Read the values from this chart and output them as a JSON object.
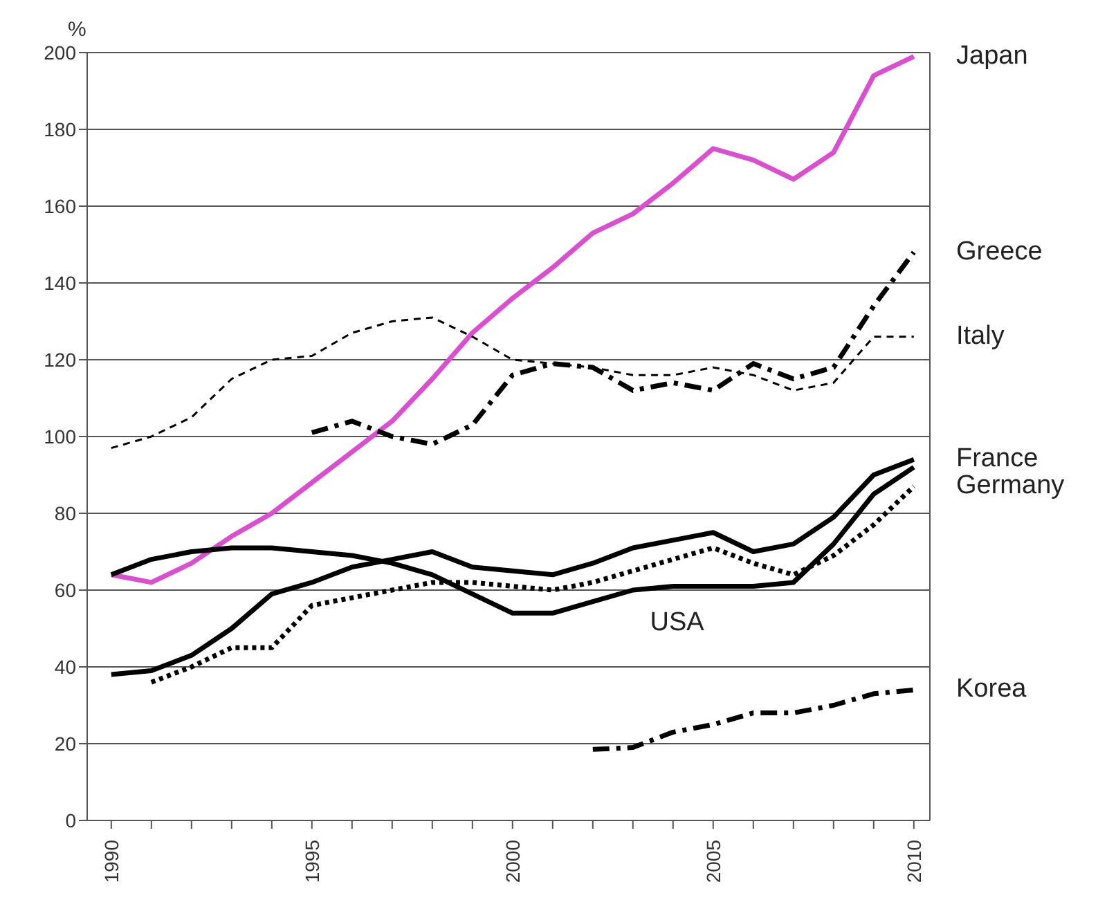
{
  "chart_data": {
    "type": "line",
    "ylabel": "%",
    "x": [
      1990,
      1991,
      1992,
      1993,
      1994,
      1995,
      1996,
      1997,
      1998,
      1999,
      2000,
      2001,
      2002,
      2003,
      2004,
      2005,
      2006,
      2007,
      2008,
      2009,
      2010
    ],
    "series": [
      {
        "name": "Japan",
        "color": "#d94fd0",
        "line_style": "solid",
        "values": [
          64,
          62,
          67,
          74,
          80,
          88,
          96,
          104,
          115,
          127,
          136,
          144,
          153,
          158,
          166,
          175,
          172,
          167,
          174,
          194,
          199
        ]
      },
      {
        "name": "Greece",
        "color": "#000000",
        "line_style": "dashdot",
        "values": [
          null,
          null,
          null,
          null,
          null,
          101,
          104,
          100,
          98,
          103,
          116,
          119,
          118,
          112,
          114,
          112,
          119,
          115,
          118,
          134,
          148
        ]
      },
      {
        "name": "Italy",
        "color": "#000000",
        "line_style": "dashed",
        "values": [
          97,
          100,
          105,
          115,
          120,
          121,
          127,
          130,
          131,
          126,
          120,
          119,
          118,
          116,
          116,
          118,
          116,
          112,
          114,
          126,
          126
        ]
      },
      {
        "name": "France",
        "color": "#000000",
        "line_style": "solid",
        "values": [
          38,
          39,
          43,
          50,
          59,
          62,
          66,
          68,
          70,
          66,
          65,
          64,
          67,
          71,
          73,
          75,
          70,
          72,
          79,
          90,
          94
        ]
      },
      {
        "name": "Germany",
        "color": "#000000",
        "line_style": "dotted",
        "values": [
          null,
          36,
          40,
          45,
          45,
          56,
          58,
          60,
          62,
          62,
          61,
          60,
          62,
          65,
          68,
          71,
          67,
          64,
          69,
          77,
          87
        ]
      },
      {
        "color": "#000000",
        "line_style": "solid",
        "values": [
          64,
          68,
          70,
          71,
          71,
          70,
          69,
          67,
          64,
          59,
          54,
          54,
          57,
          60,
          61,
          61,
          61,
          62,
          72,
          85,
          92
        ]
      },
      {
        "name": "Korea",
        "color": "#000000",
        "line_style": "dashdot",
        "values": [
          null,
          null,
          null,
          null,
          null,
          null,
          null,
          null,
          null,
          null,
          null,
          null,
          18.5,
          19,
          23,
          25,
          28,
          28,
          30,
          33,
          34
        ]
      }
    ],
    "annotations": [
      "USA"
    ],
    "xlim": [
      1989.4,
      2010.4
    ],
    "xticks": [
      1990,
      {
        "value": 1991,
        "label": null
      },
      {
        "value": 1992,
        "label": null
      },
      {
        "value": 1993,
        "label": null
      },
      {
        "value": 1994,
        "label": null
      },
      1995,
      {
        "value": 1996,
        "label": null
      },
      {
        "value": 1997,
        "label": null
      },
      {
        "value": 1998,
        "label": null
      },
      {
        "value": 1999,
        "label": null
      },
      2000,
      {
        "value": 2001,
        "label": null
      },
      {
        "value": 2002,
        "label": null
      },
      {
        "value": 2003,
        "label": null
      },
      {
        "value": 2004,
        "label": null
      },
      2005,
      {
        "value": 2006,
        "label": null
      },
      {
        "value": 2007,
        "label": null
      },
      {
        "value": 2008,
        "label": null
      },
      {
        "value": 2009,
        "label": null
      },
      2010
    ],
    "ylim": [
      0,
      200
    ],
    "yticks": [
      0,
      20,
      40,
      60,
      80,
      100,
      120,
      140,
      160,
      180,
      200
    ],
    "grid": "y",
    "legend": false,
    "marker": "none"
  }
}
